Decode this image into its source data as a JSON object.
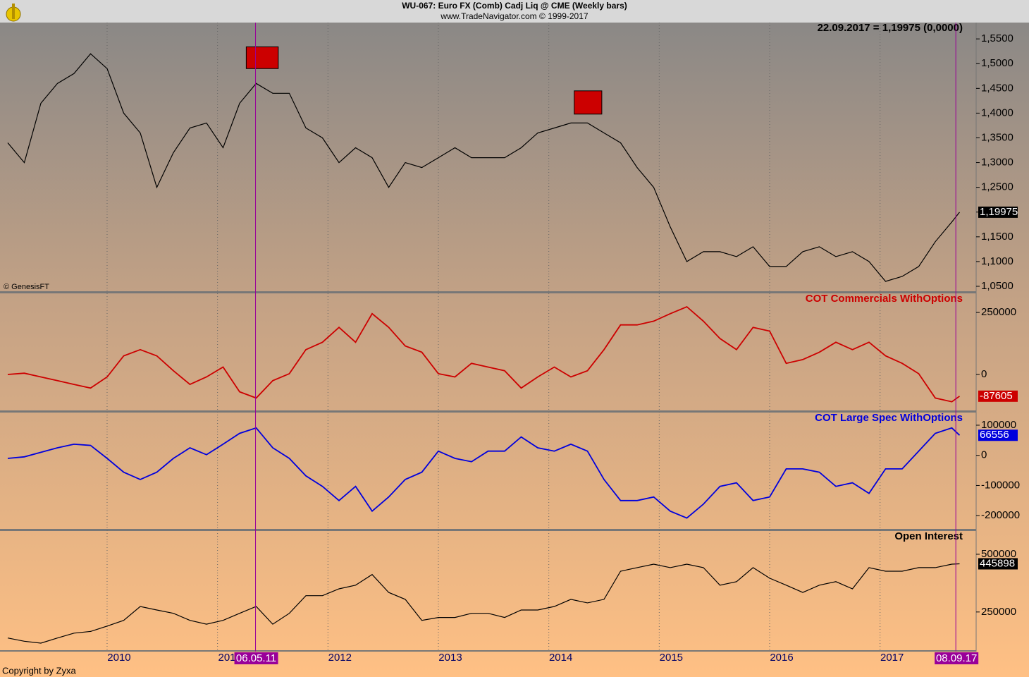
{
  "header": {
    "title": "WU-067:  Euro FX (Comb) Cadj Liq @ CME  (Weekly bars)",
    "subtitle": "www.TradeNavigator.com © 1999-2017",
    "source": "© GenesisFT",
    "footer": "Copyright by Zyxa"
  },
  "chart_data": [
    {
      "type": "line",
      "title": "22.09.2017 = 1,19975 (0,0000)",
      "x": [
        2009.1,
        2009.25,
        2009.4,
        2009.55,
        2009.7,
        2009.85,
        2010.0,
        2010.15,
        2010.3,
        2010.45,
        2010.6,
        2010.75,
        2010.9,
        2011.05,
        2011.2,
        2011.35,
        2011.5,
        2011.65,
        2011.8,
        2011.95,
        2012.1,
        2012.25,
        2012.4,
        2012.55,
        2012.7,
        2012.85,
        2013.0,
        2013.15,
        2013.3,
        2013.45,
        2013.6,
        2013.75,
        2013.9,
        2014.05,
        2014.2,
        2014.35,
        2014.5,
        2014.65,
        2014.8,
        2014.95,
        2015.1,
        2015.25,
        2015.4,
        2015.55,
        2015.7,
        2015.85,
        2016.0,
        2016.15,
        2016.3,
        2016.45,
        2016.6,
        2016.75,
        2016.9,
        2017.05,
        2017.2,
        2017.35,
        2017.5,
        2017.65,
        2017.72
      ],
      "xlim": [
        2009.03,
        2017.87
      ],
      "xticks": [
        2010,
        2011,
        2012,
        2013,
        2014,
        2015,
        2016,
        2017
      ],
      "series": [
        {
          "color": "#000000",
          "values": [
            1.34,
            1.3,
            1.42,
            1.46,
            1.48,
            1.52,
            1.49,
            1.4,
            1.36,
            1.25,
            1.32,
            1.37,
            1.38,
            1.33,
            1.42,
            1.46,
            1.44,
            1.44,
            1.37,
            1.35,
            1.3,
            1.33,
            1.31,
            1.25,
            1.3,
            1.29,
            1.31,
            1.33,
            1.31,
            1.31,
            1.31,
            1.33,
            1.36,
            1.37,
            1.38,
            1.38,
            1.36,
            1.34,
            1.29,
            1.25,
            1.17,
            1.1,
            1.12,
            1.12,
            1.11,
            1.13,
            1.09,
            1.09,
            1.12,
            1.13,
            1.11,
            1.12,
            1.1,
            1.06,
            1.07,
            1.09,
            1.14,
            1.18,
            1.19975
          ],
          "value_labels": [
            null,
            null,
            null,
            null,
            null,
            null,
            null,
            null,
            null,
            null,
            null,
            null,
            null,
            null,
            null,
            null,
            null,
            null,
            null,
            null,
            null,
            null,
            null,
            null,
            null,
            null,
            null,
            null,
            null,
            null,
            null,
            null,
            null,
            null,
            null,
            null,
            null,
            null,
            null,
            null,
            null,
            null,
            null,
            null,
            null,
            null,
            null,
            null,
            null,
            null,
            null,
            null,
            null,
            null,
            null,
            null,
            null,
            null,
            "1,19975"
          ]
        }
      ],
      "ylim": [
        1.04,
        1.583
      ],
      "yticks": [
        {
          "value": 1.05,
          "label": "1,0500"
        },
        {
          "value": 1.1,
          "label": "1,1000"
        },
        {
          "value": 1.15,
          "label": "1,1500"
        },
        {
          "value": 1.2,
          "label": "1,2000"
        },
        {
          "value": 1.25,
          "label": "1,2500"
        },
        {
          "value": 1.3,
          "label": "1,3000"
        },
        {
          "value": 1.35,
          "label": "1,3500"
        },
        {
          "value": 1.4,
          "label": "1,4000"
        },
        {
          "value": 1.45,
          "label": "1,4500"
        },
        {
          "value": 1.5,
          "label": "1,5000"
        },
        {
          "value": 1.55,
          "label": "1,5500"
        }
      ],
      "highlights": [
        {
          "x": [
            2011.26,
            2011.55
          ],
          "y": [
            1.49,
            1.534
          ],
          "color": "#cc0000"
        },
        {
          "x": [
            2014.23,
            2014.48
          ],
          "y": [
            1.398,
            1.445
          ],
          "color": "#cc0000"
        }
      ],
      "markers": [
        {
          "x": 2011.344,
          "label": "06.05.11"
        },
        {
          "x": 2017.686,
          "label": "08.09.17"
        }
      ]
    },
    {
      "type": "line",
      "title": "COT Commercials WithOptions",
      "title_color": "#cc0000",
      "x": [
        2009.1,
        2009.25,
        2009.4,
        2009.55,
        2009.7,
        2009.85,
        2010.0,
        2010.15,
        2010.3,
        2010.45,
        2010.6,
        2010.75,
        2010.9,
        2011.05,
        2011.2,
        2011.35,
        2011.5,
        2011.65,
        2011.8,
        2011.95,
        2012.1,
        2012.25,
        2012.4,
        2012.55,
        2012.7,
        2012.85,
        2013.0,
        2013.15,
        2013.3,
        2013.45,
        2013.6,
        2013.75,
        2013.9,
        2014.05,
        2014.2,
        2014.35,
        2014.5,
        2014.65,
        2014.8,
        2014.95,
        2015.1,
        2015.25,
        2015.4,
        2015.55,
        2015.7,
        2015.85,
        2016.0,
        2016.15,
        2016.3,
        2016.45,
        2016.6,
        2016.75,
        2016.9,
        2017.05,
        2017.2,
        2017.35,
        2017.5,
        2017.65,
        2017.72
      ],
      "xlim": [
        2009.03,
        2017.87
      ],
      "series": [
        {
          "color": "#cc0000",
          "values": [
            0,
            5000,
            -10000,
            -25000,
            -40000,
            -55000,
            -10000,
            75000,
            100000,
            75000,
            15000,
            -40000,
            -10000,
            30000,
            -70000,
            -95000,
            -25000,
            3000,
            100000,
            130000,
            190000,
            130000,
            245000,
            190000,
            115000,
            90000,
            3000,
            -10000,
            45000,
            30000,
            15000,
            -55000,
            -10000,
            30000,
            -10000,
            15000,
            100000,
            200000,
            200000,
            215000,
            245000,
            273000,
            215000,
            145000,
            100000,
            190000,
            175000,
            45000,
            60000,
            90000,
            130000,
            100000,
            130000,
            75000,
            45000,
            3000,
            -95000,
            -110000,
            -87605
          ]
        }
      ],
      "ylim": [
        -145000,
        327000
      ],
      "yticks": [
        0,
        250000
      ]
    },
    {
      "type": "line",
      "title": "COT Large Spec WithOptions",
      "title_color": "#0000dd",
      "x": [
        2009.1,
        2009.25,
        2009.4,
        2009.55,
        2009.7,
        2009.85,
        2010.0,
        2010.15,
        2010.3,
        2010.45,
        2010.6,
        2010.75,
        2010.9,
        2011.05,
        2011.2,
        2011.35,
        2011.5,
        2011.65,
        2011.8,
        2011.95,
        2012.1,
        2012.25,
        2012.4,
        2012.55,
        2012.7,
        2012.85,
        2013.0,
        2013.15,
        2013.3,
        2013.45,
        2013.6,
        2013.75,
        2013.9,
        2014.05,
        2014.2,
        2014.35,
        2014.5,
        2014.65,
        2014.8,
        2014.95,
        2015.1,
        2015.25,
        2015.4,
        2015.55,
        2015.7,
        2015.85,
        2016.0,
        2016.15,
        2016.3,
        2016.45,
        2016.6,
        2016.75,
        2016.9,
        2017.05,
        2017.2,
        2017.35,
        2017.5,
        2017.65,
        2017.72
      ],
      "xlim": [
        2009.03,
        2017.87
      ],
      "series": [
        {
          "color": "#0000dd",
          "values": [
            -10000,
            -5000,
            10000,
            25000,
            37000,
            33000,
            -10000,
            -56000,
            -80000,
            -56000,
            -10000,
            25000,
            2000,
            37000,
            73000,
            91000,
            25000,
            -10000,
            -68000,
            -103000,
            -150000,
            -103000,
            -185000,
            -138000,
            -80000,
            -56000,
            14000,
            -10000,
            -21000,
            14000,
            14000,
            61000,
            25000,
            14000,
            37000,
            14000,
            -80000,
            -150000,
            -150000,
            -138000,
            -185000,
            -208000,
            -162000,
            -103000,
            -91000,
            -150000,
            -138000,
            -45000,
            -45000,
            -56000,
            -103000,
            -91000,
            -126000,
            -45000,
            -45000,
            14000,
            73000,
            91000,
            66556
          ]
        }
      ],
      "ylim": [
        -244000,
        142000
      ],
      "yticks": [
        -200000,
        -100000,
        0,
        100000
      ]
    },
    {
      "type": "line",
      "title": "Open Interest",
      "title_color": "#000000",
      "log": true,
      "x": [
        2009.1,
        2009.25,
        2009.4,
        2009.55,
        2009.7,
        2009.85,
        2010.0,
        2010.15,
        2010.3,
        2010.45,
        2010.6,
        2010.75,
        2010.9,
        2011.05,
        2011.2,
        2011.35,
        2011.5,
        2011.65,
        2011.8,
        2011.95,
        2012.1,
        2012.25,
        2012.4,
        2012.55,
        2012.7,
        2012.85,
        2013.0,
        2013.15,
        2013.3,
        2013.45,
        2013.6,
        2013.75,
        2013.9,
        2014.05,
        2014.2,
        2014.35,
        2014.5,
        2014.65,
        2014.8,
        2014.95,
        2015.1,
        2015.25,
        2015.4,
        2015.55,
        2015.7,
        2015.85,
        2016.0,
        2016.15,
        2016.3,
        2016.45,
        2016.6,
        2016.75,
        2016.9,
        2017.05,
        2017.2,
        2017.35,
        2017.5,
        2017.65,
        2017.72
      ],
      "xlim": [
        2009.03,
        2017.87
      ],
      "series": [
        {
          "color": "#000000",
          "values": [
            183000,
            176000,
            172000,
            183000,
            194000,
            198000,
            211000,
            226000,
            267000,
            256000,
            246000,
            226000,
            216000,
            226000,
            246000,
            267000,
            216000,
            246000,
            304000,
            304000,
            330000,
            345000,
            392000,
            316000,
            291000,
            226000,
            234000,
            234000,
            246000,
            246000,
            234000,
            256000,
            256000,
            267000,
            291000,
            279000,
            291000,
            408000,
            426000,
            444000,
            426000,
            444000,
            426000,
            345000,
            360000,
            426000,
            375000,
            345000,
            316000,
            345000,
            360000,
            330000,
            426000,
            408000,
            408000,
            426000,
            426000,
            444000,
            445898
          ]
        }
      ],
      "ylim": [
        158000,
        661000
      ],
      "yticks": [
        250000,
        500000
      ]
    }
  ]
}
